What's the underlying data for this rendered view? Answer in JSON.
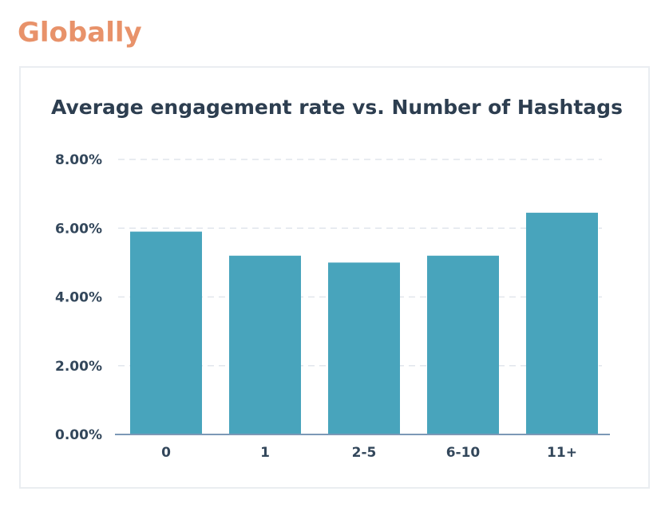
{
  "header": {
    "title": "Globally"
  },
  "colors": {
    "title": "#e8926a",
    "bar": "#48a4bc",
    "text": "#2d3e50",
    "grid": "#e1e6ec",
    "axis": "#7c98b6"
  },
  "chart_data": {
    "type": "bar",
    "title": "Average engagement rate vs. Number of Hashtags",
    "xlabel": "",
    "ylabel": "",
    "categories": [
      "0",
      "1",
      "2-5",
      "6-10",
      "11+"
    ],
    "values": [
      5.9,
      5.2,
      5.0,
      5.2,
      6.45
    ],
    "ylim": [
      0,
      8
    ],
    "yticks": [
      0,
      2,
      4,
      6,
      8
    ],
    "ytick_labels": [
      "0.00%",
      "2.00%",
      "4.00%",
      "6.00%",
      "8.00%"
    ],
    "grid": true,
    "legend": "none"
  }
}
